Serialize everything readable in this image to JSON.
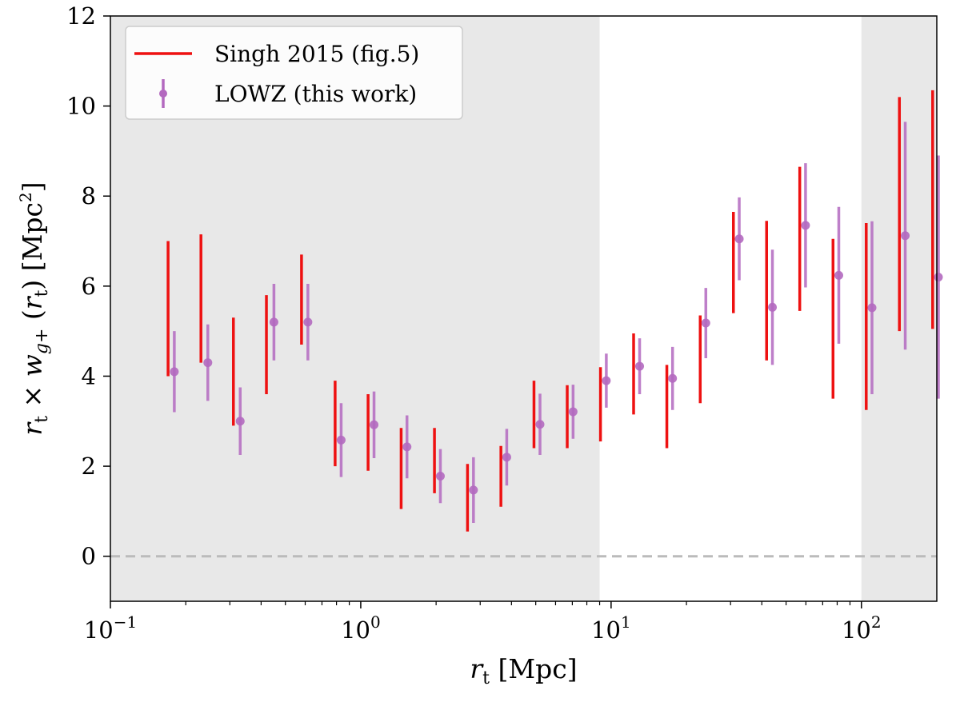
{
  "chart_data": {
    "type": "errorbar",
    "xscale": "log",
    "xlim": [
      0.1,
      200
    ],
    "ylim": [
      -1,
      12
    ],
    "xlabel": "r_t [Mpc]",
    "ylabel": "r_t × w_g+ (r_t) [Mpc^2]",
    "xticks": [
      {
        "value": 0.1,
        "base": "10",
        "exp": "−1"
      },
      {
        "value": 1,
        "base": "10",
        "exp": "0"
      },
      {
        "value": 10,
        "base": "10",
        "exp": "1"
      },
      {
        "value": 100,
        "base": "10",
        "exp": "2"
      }
    ],
    "yticks": [
      0,
      2,
      4,
      6,
      8,
      10,
      12
    ],
    "shaded_regions": [
      {
        "x_from": 0.1,
        "x_to": 9,
        "color": "#e8e8e8"
      },
      {
        "x_from": 100,
        "x_to": 200,
        "color": "#e8e8e8"
      }
    ],
    "reference_line": {
      "y": 0,
      "style": "dashed",
      "color": "#bbbbbb"
    },
    "legend": {
      "location": "top-left",
      "entries": [
        {
          "label": "Singh 2015 (fig.5)",
          "color": "#ee1111",
          "marker": "line"
        },
        {
          "label": "LOWZ (this work)",
          "color": "#b369bf",
          "marker": "point-errorbar"
        }
      ]
    },
    "series": [
      {
        "name": "Singh 2015 (fig.5)",
        "color": "#ee1111",
        "style": "errorbar-only",
        "x": [
          0.17,
          0.23,
          0.31,
          0.42,
          0.58,
          0.79,
          1.07,
          1.45,
          1.97,
          2.67,
          3.63,
          4.92,
          6.68,
          9.07,
          12.3,
          16.7,
          22.7,
          30.8,
          41.8,
          56.7,
          77.0,
          104.5,
          141.8,
          192.5
        ],
        "y_low": [
          4.0,
          4.3,
          2.9,
          3.6,
          4.7,
          2.0,
          1.9,
          1.05,
          1.4,
          0.55,
          1.1,
          2.4,
          2.4,
          2.55,
          3.15,
          2.4,
          3.4,
          5.4,
          4.35,
          5.45,
          3.5,
          3.25,
          5.0,
          5.05
        ],
        "y_high": [
          7.0,
          7.15,
          5.3,
          5.8,
          6.7,
          3.9,
          3.6,
          2.85,
          2.85,
          2.05,
          2.45,
          3.9,
          3.8,
          4.2,
          4.95,
          4.25,
          5.35,
          7.65,
          7.45,
          8.65,
          7.05,
          7.4,
          10.2,
          10.35
        ]
      },
      {
        "name": "LOWZ (this work)",
        "color": "#b369bf",
        "style": "point-errorbar",
        "x": [
          0.18,
          0.245,
          0.33,
          0.45,
          0.615,
          0.835,
          1.13,
          1.53,
          2.08,
          2.82,
          3.83,
          5.2,
          7.05,
          9.57,
          13.0,
          17.6,
          23.9,
          32.5,
          44.1,
          59.8,
          81.2,
          110.2,
          149.6,
          203.0
        ],
        "y": [
          4.1,
          4.3,
          3.0,
          5.2,
          5.2,
          2.58,
          2.92,
          2.43,
          1.78,
          1.47,
          2.2,
          2.93,
          3.21,
          3.9,
          4.22,
          3.95,
          5.18,
          7.05,
          5.53,
          7.35,
          6.24,
          5.52,
          7.12,
          6.2
        ],
        "y_err": [
          0.9,
          0.85,
          0.75,
          0.85,
          0.85,
          0.82,
          0.74,
          0.7,
          0.6,
          0.73,
          0.63,
          0.68,
          0.6,
          0.6,
          0.62,
          0.7,
          0.78,
          0.92,
          1.28,
          1.38,
          1.52,
          1.92,
          2.53,
          2.7
        ]
      }
    ]
  }
}
